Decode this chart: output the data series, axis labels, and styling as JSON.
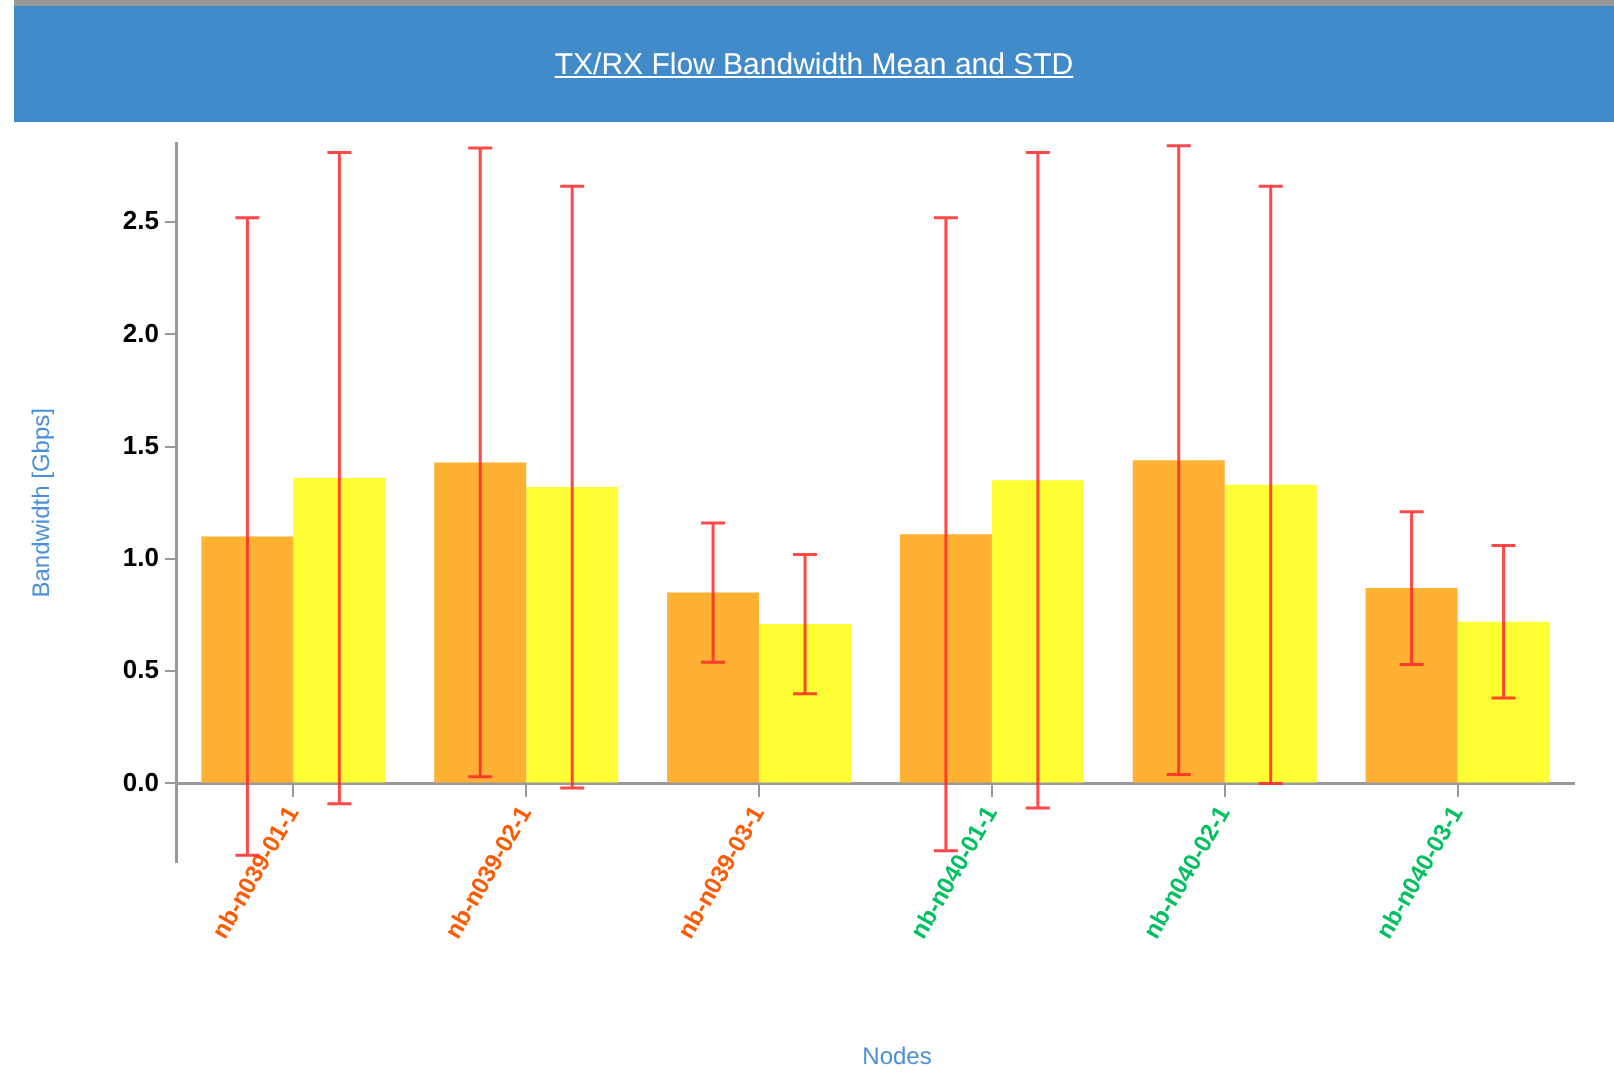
{
  "chart_data": {
    "type": "bar",
    "title": "TX/RX Flow Bandwidth Mean and STD",
    "xlabel": "Nodes",
    "ylabel": "Bandwidth [Gbps]",
    "categories": [
      "nb-n039-01-1",
      "nb-n039-02-1",
      "nb-n039-03-1",
      "nb-n040-01-1",
      "nb-n040-02-1",
      "nb-n040-03-1"
    ],
    "series": [
      {
        "color": "#ffb133",
        "values": [
          1.1,
          1.43,
          0.85,
          1.11,
          1.44,
          0.87
        ],
        "errors": [
          1.42,
          1.4,
          0.31,
          1.41,
          1.4,
          0.34
        ]
      },
      {
        "color": "#ffff33",
        "values": [
          1.36,
          1.32,
          0.71,
          1.35,
          1.33,
          0.72
        ],
        "errors": [
          1.45,
          1.34,
          0.31,
          1.46,
          1.33,
          0.34
        ]
      }
    ],
    "ylim": [
      -0.35,
      2.85
    ],
    "yticks": [
      {
        "value": 0,
        "label": "0.0"
      },
      {
        "value": 0.5,
        "label": "0.5"
      },
      {
        "value": 1,
        "label": "1.0"
      },
      {
        "value": 1.5,
        "label": "1.5"
      },
      {
        "value": 2,
        "label": "2.0"
      },
      {
        "value": 2.5,
        "label": "2.5"
      }
    ],
    "grid": false,
    "legend": false
  }
}
